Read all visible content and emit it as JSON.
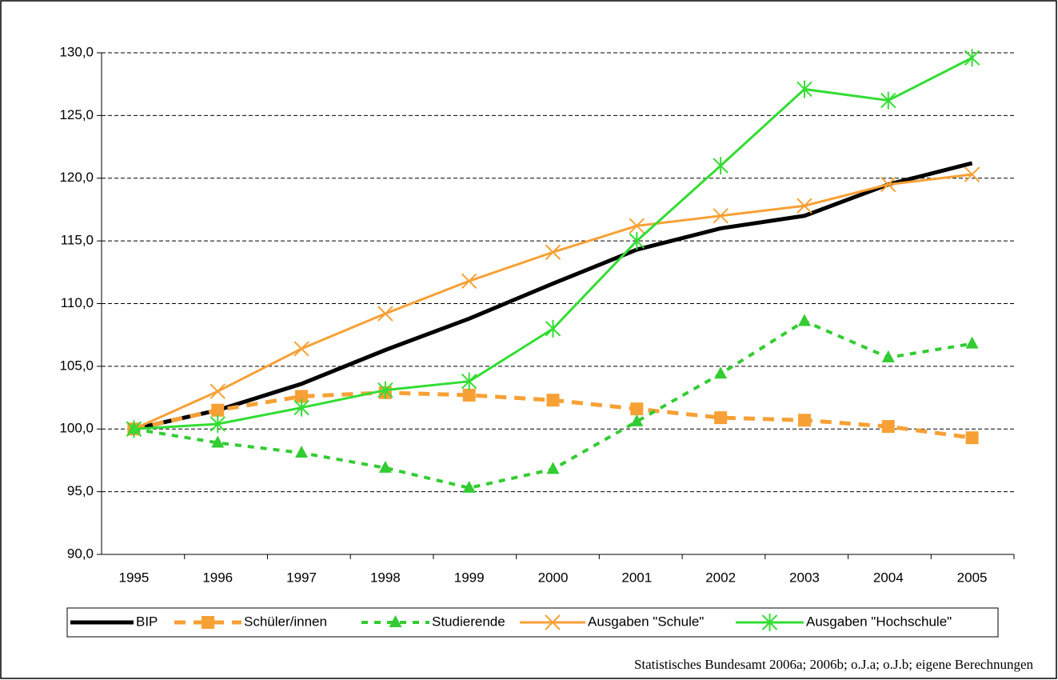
{
  "chart_data": {
    "type": "line",
    "categories": [
      "1995",
      "1996",
      "1997",
      "1998",
      "1999",
      "2000",
      "2001",
      "2002",
      "2003",
      "2004",
      "2005"
    ],
    "series": [
      {
        "name": "BIP",
        "color": "#000000",
        "values": [
          100,
          101.5,
          103.6,
          106.3,
          108.8,
          111.6,
          114.3,
          116.0,
          117.0,
          119.5,
          121.2
        ]
      },
      {
        "name": "Schüler/innen",
        "color": "#f7a035",
        "values": [
          100,
          101.5,
          102.6,
          102.9,
          102.7,
          102.3,
          101.6,
          100.9,
          100.7,
          100.2,
          99.3
        ]
      },
      {
        "name": "Studierende",
        "color": "#33cc33",
        "values": [
          100,
          98.9,
          98.1,
          96.9,
          95.3,
          96.8,
          100.6,
          104.4,
          108.6,
          105.7,
          106.8
        ]
      },
      {
        "name": "Ausgaben \"Schule\"",
        "color": "#f7a035",
        "values": [
          100,
          103.0,
          106.4,
          109.2,
          111.8,
          114.1,
          116.2,
          117.0,
          117.8,
          119.5,
          120.3
        ]
      },
      {
        "name": "Ausgaben \"Hochschule\"",
        "color": "#33dd33",
        "values": [
          100,
          100.4,
          101.7,
          103.1,
          103.8,
          108.0,
          115.0,
          121.0,
          127.1,
          126.2,
          129.6
        ]
      }
    ],
    "ylim": [
      90,
      130
    ],
    "yticks": [
      {
        "value": 90,
        "label": "90,0"
      },
      {
        "value": 95,
        "label": "95,0"
      },
      {
        "value": 100,
        "label": "100,0"
      },
      {
        "value": 105,
        "label": "105,0"
      },
      {
        "value": 110,
        "label": "110,0"
      },
      {
        "value": 115,
        "label": "115,0"
      },
      {
        "value": 120,
        "label": "120,0"
      },
      {
        "value": 125,
        "label": "125,0"
      },
      {
        "value": 130,
        "label": "130,0"
      }
    ],
    "grid": true,
    "legend": "bottom",
    "source": "Statistisches Bundesamt 2006a; 2006b; o.J.a; o.J.b; eigene Berechnungen"
  }
}
